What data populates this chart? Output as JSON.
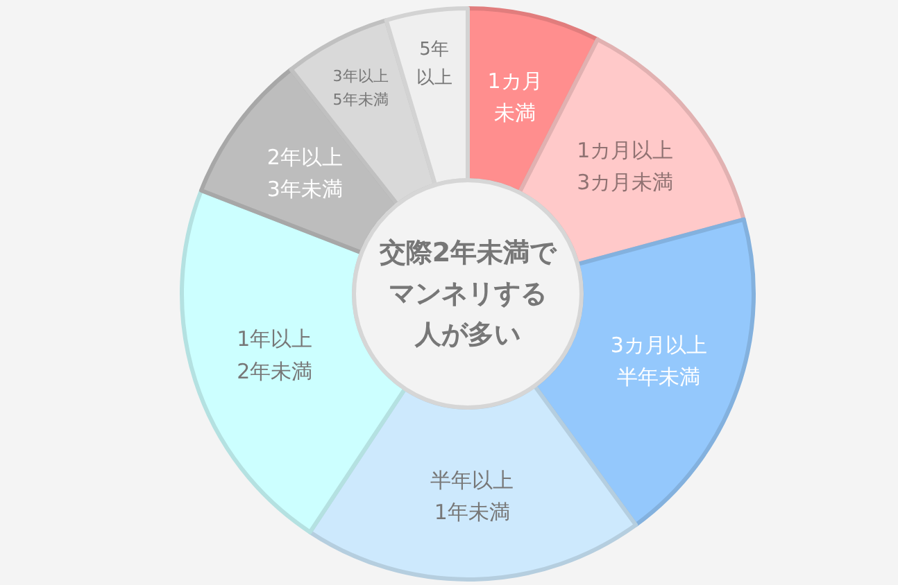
{
  "chart_data": {
    "type": "donut",
    "categories": [
      "1カ月未満",
      "1カ月以上3カ月未満",
      "3カ月以上半年未満",
      "半年以上1年未満",
      "1年以上2年未満",
      "2年以上3年未満",
      "3年以上5年未満",
      "5年以上"
    ],
    "values": [
      7.5,
      13.3,
      19.2,
      19.3,
      21.6,
      8.5,
      6.0,
      4.6
    ],
    "colors": [
      "#ff8e8e",
      "#ffc9c9",
      "#94c8fc",
      "#cde9fd",
      "#ccffff",
      "#bdbdbd",
      "#d9d9d9",
      "#efefef"
    ],
    "annotations": [
      "交際2年未満でマンネリする人が多い"
    ]
  }
}
